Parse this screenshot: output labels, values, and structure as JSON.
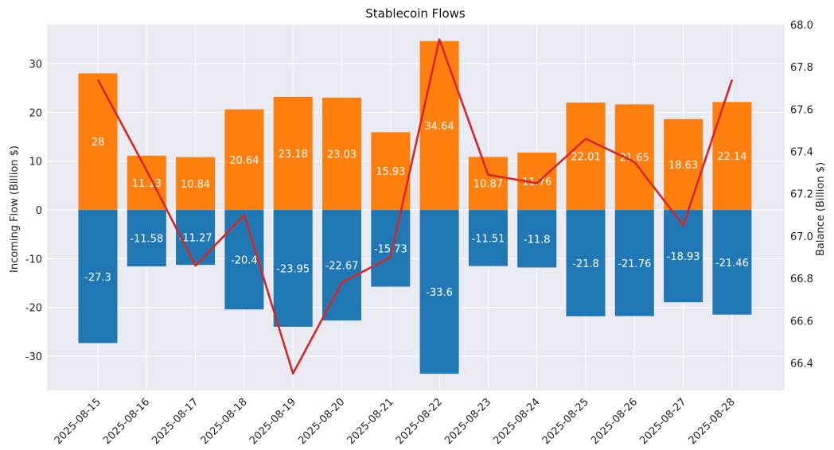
{
  "chart_data": {
    "type": "bar",
    "title": "Stablecoin Flows",
    "xlabel": "",
    "ylabel": "Incoming Flow (Billion $)",
    "y2label": "Balance (Billion $)",
    "categories": [
      "2025-08-15",
      "2025-08-16",
      "2025-08-17",
      "2025-08-18",
      "2025-08-19",
      "2025-08-20",
      "2025-08-21",
      "2025-08-22",
      "2025-08-23",
      "2025-08-24",
      "2025-08-25",
      "2025-08-26",
      "2025-08-27",
      "2025-08-28"
    ],
    "series": [
      {
        "values": [
          28,
          11.13,
          10.84,
          20.64,
          23.18,
          23.03,
          15.93,
          34.64,
          10.87,
          11.76,
          22.01,
          21.65,
          18.63,
          22.14
        ],
        "labels": [
          "28",
          "11.13",
          "10.84",
          "20.64",
          "23.18",
          "23.03",
          "15.93",
          "34.64",
          "10.87",
          "11.76",
          "22.01",
          "21.65",
          "18.63",
          "22.14"
        ],
        "color": "#ff7f0e",
        "axis": "left",
        "kind": "bar"
      },
      {
        "values": [
          -27.3,
          -11.58,
          -11.27,
          -20.4,
          -23.95,
          -22.67,
          -15.73,
          -33.6,
          -11.51,
          -11.8,
          -21.8,
          -21.76,
          -18.93,
          -21.46
        ],
        "labels": [
          "-27.3",
          "-11.58",
          "-11.27",
          "-20.4",
          "-23.95",
          "-22.67",
          "-15.73",
          "-33.6",
          "-11.51",
          "-11.8",
          "-21.8",
          "-21.76",
          "-18.93",
          "-21.46"
        ],
        "color": "#1f77b4",
        "axis": "left",
        "kind": "bar"
      },
      {
        "values": [
          67.74,
          67.31,
          66.86,
          67.1,
          66.35,
          66.78,
          66.9,
          67.93,
          67.29,
          67.25,
          67.46,
          67.35,
          67.05,
          67.74
        ],
        "color": "#d62728",
        "axis": "right",
        "kind": "line"
      }
    ],
    "ylim": [
      -37,
      38
    ],
    "y2lim": [
      66.27,
      68.0
    ],
    "yticks": [
      -30,
      -20,
      -10,
      0,
      10,
      20,
      30
    ],
    "y2ticks": [
      66.4,
      66.6,
      66.8,
      67.0,
      67.2,
      67.4,
      67.6,
      67.8,
      68.0
    ],
    "y2tick_labels": [
      "66.4",
      "66.6",
      "66.8",
      "67.0",
      "67.2",
      "67.4",
      "67.6",
      "67.8",
      "68.0"
    ],
    "grid": true,
    "background": "#eaeaf2",
    "grid_color": "#ffffff"
  }
}
